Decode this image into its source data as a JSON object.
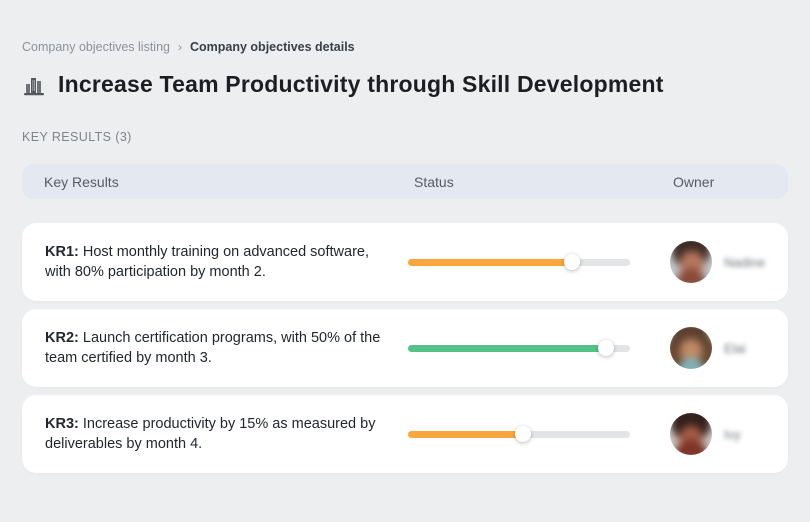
{
  "breadcrumb": {
    "items": [
      {
        "label": "Company objectives listing"
      },
      {
        "label": "Company objectives details"
      }
    ],
    "separator": "›"
  },
  "header": {
    "icon": "buildings-icon",
    "title": "Increase Team Productivity through Skill Development"
  },
  "section": {
    "label": "KEY RESULTS (3)"
  },
  "table": {
    "columns": {
      "key_results": "Key Results",
      "status": "Status",
      "owner": "Owner"
    },
    "rows": [
      {
        "kr_label": "KR1:",
        "kr_text": "Host monthly training on advanced software, with 80% participation by month 2.",
        "progress_percent": 74,
        "progress_color": "#F9A73C",
        "owner": "Nadine"
      },
      {
        "kr_label": "KR2:",
        "kr_text": "Launch certification programs, with 50% of the team certified by month 3.",
        "progress_percent": 89,
        "progress_color": "#55C189",
        "owner": "Elai"
      },
      {
        "kr_label": "KR3:",
        "kr_text": "Increase productivity by 15% as measured by deliverables by month 4.",
        "progress_percent": 52,
        "progress_color": "#F9A73C",
        "owner": "Ivy"
      }
    ]
  },
  "colors": {
    "page_bg": "#EDEEEF",
    "header_bar_bg": "#E3E8F1",
    "progress_track": "#E3E4E5",
    "progress_orange": "#F9A73C",
    "progress_green": "#55C189"
  }
}
